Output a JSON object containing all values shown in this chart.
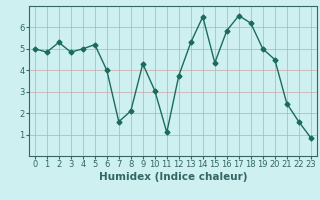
{
  "x": [
    0,
    1,
    2,
    3,
    4,
    5,
    6,
    7,
    8,
    9,
    10,
    11,
    12,
    13,
    14,
    15,
    16,
    17,
    18,
    19,
    20,
    21,
    22,
    23
  ],
  "y": [
    5.0,
    4.85,
    5.3,
    4.85,
    5.0,
    5.2,
    4.0,
    1.6,
    2.1,
    4.3,
    3.05,
    1.1,
    3.75,
    5.3,
    6.5,
    4.35,
    5.85,
    6.55,
    6.2,
    5.0,
    4.5,
    2.45,
    1.6,
    0.85
  ],
  "line_color": "#1a6b5e",
  "marker": "D",
  "markersize": 2.5,
  "linewidth": 1.0,
  "bg_color": "#cff0f0",
  "grid_color": "#c8a8a8",
  "xlabel": "Humidex (Indice chaleur)",
  "xlabel_fontsize": 7.5,
  "xlim": [
    -0.5,
    23.5
  ],
  "ylim": [
    0,
    7
  ],
  "yticks": [
    1,
    2,
    3,
    4,
    5,
    6
  ],
  "xticks": [
    0,
    1,
    2,
    3,
    4,
    5,
    6,
    7,
    8,
    9,
    10,
    11,
    12,
    13,
    14,
    15,
    16,
    17,
    18,
    19,
    20,
    21,
    22,
    23
  ],
  "tick_fontsize": 6.0,
  "spine_color": "#336666"
}
